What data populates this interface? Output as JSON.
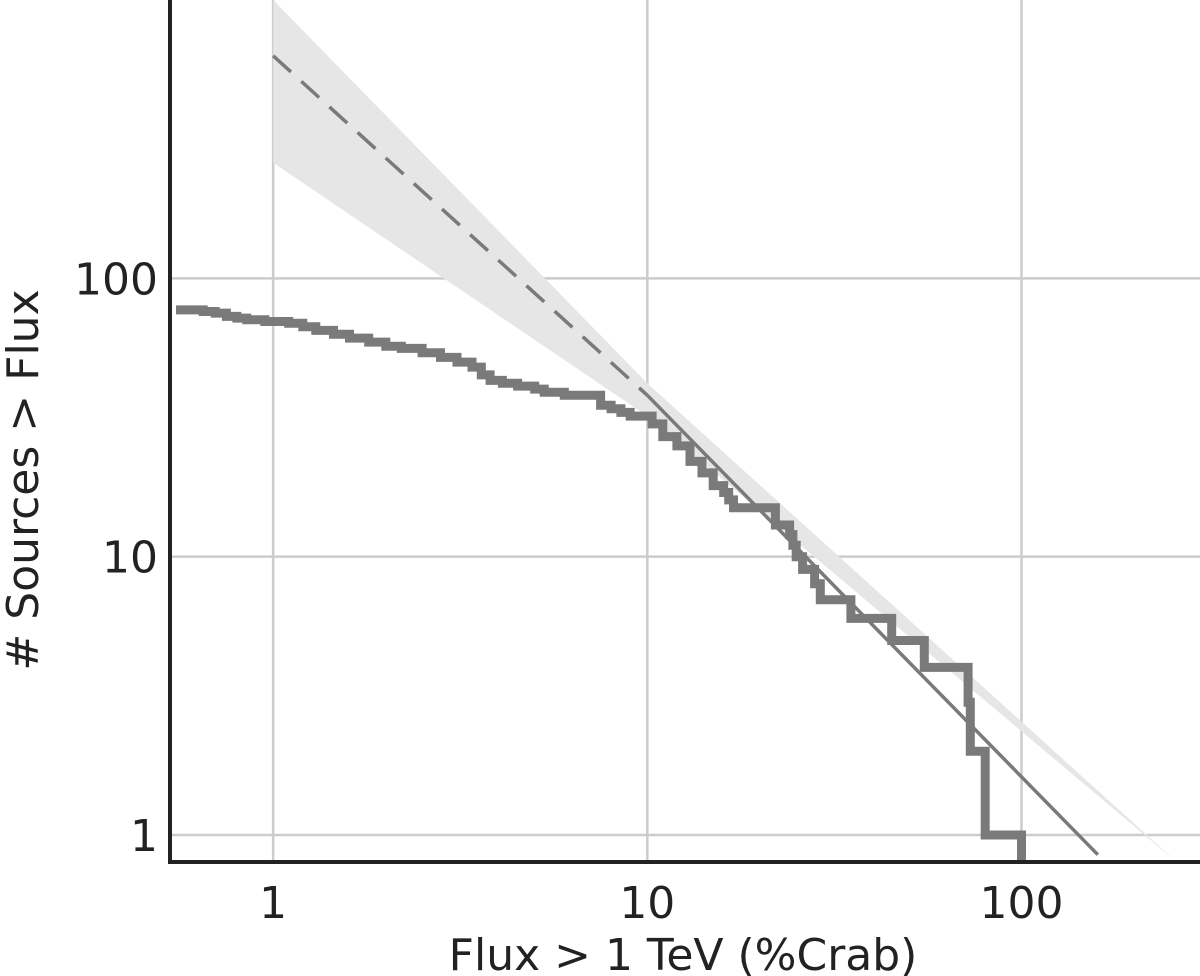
{
  "chart_data": {
    "type": "line",
    "xscale": "log",
    "yscale": "log",
    "xlabel": "Flux > 1 TeV (%Crab)",
    "ylabel": "# Sources > Flux",
    "xlim": [
      0.53,
      300
    ],
    "ylim": [
      0.8,
      1000
    ],
    "grid": true,
    "x_ticks": [
      {
        "value": 1,
        "label": "1"
      },
      {
        "value": 10,
        "label": "10"
      },
      {
        "value": 100,
        "label": "100"
      }
    ],
    "y_ticks": [
      {
        "value": 1,
        "label": "1"
      },
      {
        "value": 10,
        "label": "10"
      },
      {
        "value": 100,
        "label": "100"
      }
    ],
    "colors": {
      "step": "#7a7a7a",
      "fit": "#7a7a7a",
      "band": "#e6e6e6",
      "grid": "#cccccc",
      "axis": "#222222"
    },
    "series": [
      {
        "kind": "step",
        "x": [
          0.55,
          0.65,
          0.7,
          0.75,
          0.8,
          0.85,
          0.95,
          1.1,
          1.2,
          1.3,
          1.45,
          1.6,
          1.8,
          2.0,
          2.2,
          2.5,
          2.8,
          3.1,
          3.4,
          3.6,
          3.8,
          4.1,
          4.5,
          5.0,
          5.3,
          6.0,
          7.5,
          8.0,
          8.5,
          9.0,
          10.3,
          11.0,
          12.0,
          13.0,
          14.0,
          15.0,
          16.0,
          16.5,
          17.0,
          18.5,
          22.0,
          24.0,
          24.5,
          25.0,
          26.0,
          28.0,
          29.0,
          29.5,
          30.0,
          35.0,
          40.0,
          45.0,
          50.0,
          55.0,
          57.0,
          72.0,
          73.0,
          75.0,
          80.0,
          100.0
        ],
        "y": [
          77,
          76,
          75,
          73,
          72,
          71,
          70,
          69,
          67,
          65,
          63,
          61,
          59,
          57,
          56,
          54,
          52,
          50,
          48,
          45,
          43,
          42,
          41,
          40,
          39,
          38,
          35,
          34,
          33,
          32,
          30,
          27,
          25,
          22,
          20,
          18,
          17,
          16,
          15,
          15,
          13,
          12,
          11,
          10,
          9,
          8,
          7,
          7,
          7,
          6,
          6,
          5,
          5,
          4,
          4,
          3,
          2,
          2,
          1,
          1
        ]
      },
      {
        "kind": "power_law_fit",
        "x": [
          1,
          10,
          160
        ],
        "y": [
          630,
          38,
          0.85
        ],
        "style_breaks": [
          {
            "x_from": 1,
            "x_to": 10,
            "style": "dashed"
          },
          {
            "x_from": 10,
            "x_to": 160,
            "style": "solid"
          }
        ]
      },
      {
        "kind": "uncertainty_band",
        "x": [
          1,
          10,
          260
        ],
        "y_upper": [
          1000,
          42,
          0.8
        ],
        "y_lower": [
          260,
          32,
          0.8
        ]
      }
    ]
  }
}
